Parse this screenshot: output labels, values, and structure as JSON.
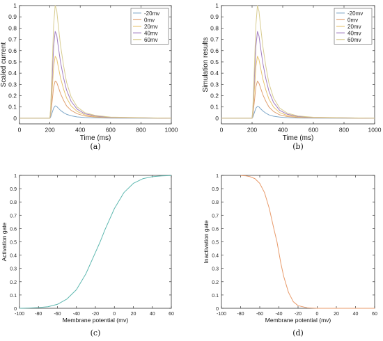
{
  "chart_data": [
    {
      "panel": "a",
      "type": "line",
      "caption": "(a)",
      "xlabel": "Time (ms)",
      "ylabel": "Scaled current",
      "xlim": [
        0,
        1000
      ],
      "ylim": [
        -0.05,
        1.0
      ],
      "xticks": [
        0,
        200,
        400,
        600,
        800,
        1000
      ],
      "yticks": [
        0,
        0.1,
        0.2,
        0.3,
        0.4,
        0.5,
        0.6,
        0.7,
        0.8,
        0.9,
        1
      ],
      "legend_position": "top-right",
      "x": [
        0,
        200,
        205,
        215,
        225,
        235,
        245,
        255,
        270,
        290,
        310,
        340,
        380,
        430,
        500,
        600,
        1000
      ],
      "series": [
        {
          "name": "-20mv",
          "color": "#7fa8c9",
          "values": [
            0,
            0,
            0.01,
            0.05,
            0.09,
            0.11,
            0.105,
            0.09,
            0.07,
            0.05,
            0.035,
            0.022,
            0.012,
            0.006,
            0.003,
            0.001,
            0.0
          ]
        },
        {
          "name": "0mv",
          "color": "#e0a070",
          "values": [
            0,
            0,
            0.03,
            0.15,
            0.28,
            0.33,
            0.32,
            0.28,
            0.22,
            0.16,
            0.11,
            0.07,
            0.04,
            0.02,
            0.01,
            0.004,
            0.0
          ]
        },
        {
          "name": "20mv",
          "color": "#e8c470",
          "values": [
            0,
            0,
            0.05,
            0.25,
            0.46,
            0.55,
            0.53,
            0.46,
            0.36,
            0.26,
            0.18,
            0.11,
            0.06,
            0.03,
            0.015,
            0.006,
            0.0
          ]
        },
        {
          "name": "40mv",
          "color": "#a07cc0",
          "values": [
            0,
            0,
            0.07,
            0.35,
            0.64,
            0.77,
            0.74,
            0.64,
            0.5,
            0.36,
            0.25,
            0.15,
            0.08,
            0.04,
            0.02,
            0.008,
            0.0
          ]
        },
        {
          "name": "60mv",
          "color": "#d8cc90",
          "values": [
            0,
            0,
            0.09,
            0.45,
            0.83,
            1.0,
            0.96,
            0.83,
            0.65,
            0.47,
            0.32,
            0.19,
            0.1,
            0.05,
            0.025,
            0.01,
            0.0
          ]
        }
      ]
    },
    {
      "panel": "b",
      "type": "line",
      "caption": "(b)",
      "xlabel": "Time (ms)",
      "ylabel": "Simulation results",
      "xlim": [
        0,
        1000
      ],
      "ylim": [
        -0.05,
        1.0
      ],
      "xticks": [
        0,
        200,
        400,
        600,
        800,
        1000
      ],
      "yticks": [
        0,
        0.1,
        0.2,
        0.3,
        0.4,
        0.5,
        0.6,
        0.7,
        0.8,
        0.9,
        1
      ],
      "legend_position": "top-right",
      "x": [
        0,
        200,
        205,
        215,
        225,
        235,
        245,
        255,
        270,
        290,
        310,
        340,
        380,
        430,
        500,
        600,
        1000
      ],
      "series": [
        {
          "name": "-20mv",
          "color": "#7fa8c9",
          "values": [
            0,
            0,
            0.01,
            0.05,
            0.09,
            0.105,
            0.1,
            0.085,
            0.065,
            0.045,
            0.03,
            0.018,
            0.01,
            0.005,
            0.002,
            0.001,
            0.0
          ]
        },
        {
          "name": "0mv",
          "color": "#e0a070",
          "values": [
            0,
            0,
            0.03,
            0.15,
            0.28,
            0.33,
            0.31,
            0.27,
            0.21,
            0.15,
            0.1,
            0.06,
            0.03,
            0.015,
            0.007,
            0.003,
            0.0
          ]
        },
        {
          "name": "20mv",
          "color": "#e8c470",
          "values": [
            0,
            0,
            0.05,
            0.25,
            0.46,
            0.55,
            0.52,
            0.45,
            0.35,
            0.25,
            0.17,
            0.1,
            0.05,
            0.025,
            0.012,
            0.005,
            0.0
          ]
        },
        {
          "name": "40mv",
          "color": "#a07cc0",
          "values": [
            0,
            0,
            0.07,
            0.35,
            0.64,
            0.77,
            0.73,
            0.63,
            0.49,
            0.35,
            0.24,
            0.14,
            0.07,
            0.035,
            0.016,
            0.007,
            0.0
          ]
        },
        {
          "name": "60mv",
          "color": "#d8cc90",
          "values": [
            0,
            0,
            0.09,
            0.45,
            0.83,
            1.0,
            0.95,
            0.82,
            0.64,
            0.46,
            0.31,
            0.18,
            0.09,
            0.045,
            0.02,
            0.009,
            0.0
          ]
        }
      ]
    },
    {
      "panel": "c",
      "type": "line",
      "caption": "(c)",
      "xlabel": "Membrane potential (mv)",
      "ylabel": "Activation gate",
      "xlim": [
        -100,
        60
      ],
      "ylim": [
        0,
        1
      ],
      "xticks": [
        -100,
        -80,
        -60,
        -40,
        -20,
        0,
        20,
        40,
        60
      ],
      "yticks": [
        0,
        0.1,
        0.2,
        0.3,
        0.4,
        0.5,
        0.6,
        0.7,
        0.8,
        0.9,
        1
      ],
      "x": [
        -100,
        -90,
        -80,
        -70,
        -60,
        -50,
        -40,
        -30,
        -20,
        -15,
        -10,
        -5,
        0,
        10,
        20,
        30,
        40,
        50,
        60
      ],
      "series": [
        {
          "color": "#5fb8b0",
          "values": [
            0.0,
            0.002,
            0.005,
            0.012,
            0.03,
            0.07,
            0.14,
            0.26,
            0.42,
            0.5,
            0.59,
            0.67,
            0.75,
            0.87,
            0.94,
            0.975,
            0.99,
            0.996,
            0.999
          ]
        }
      ]
    },
    {
      "panel": "d",
      "type": "line",
      "caption": "(d)",
      "xlabel": "Membrane potential (mv)",
      "ylabel": "Inactivation gate",
      "xlim": [
        -100,
        60
      ],
      "ylim": [
        0,
        1
      ],
      "xticks": [
        -100,
        -80,
        -60,
        -40,
        -20,
        0,
        20,
        40,
        60
      ],
      "yticks": [
        0,
        0.1,
        0.2,
        0.3,
        0.4,
        0.5,
        0.6,
        0.7,
        0.8,
        0.9,
        1
      ],
      "x": [
        -80,
        -75,
        -70,
        -65,
        -60,
        -55,
        -50,
        -45,
        -42,
        -40,
        -38,
        -35,
        -30,
        -25,
        -20,
        -10,
        0,
        20,
        40,
        60
      ],
      "series": [
        {
          "color": "#e89a6a",
          "values": [
            0.999,
            0.997,
            0.99,
            0.975,
            0.94,
            0.87,
            0.75,
            0.59,
            0.5,
            0.42,
            0.34,
            0.24,
            0.12,
            0.05,
            0.02,
            0.003,
            0.0,
            0.0,
            0.0,
            0.0
          ]
        }
      ]
    }
  ]
}
